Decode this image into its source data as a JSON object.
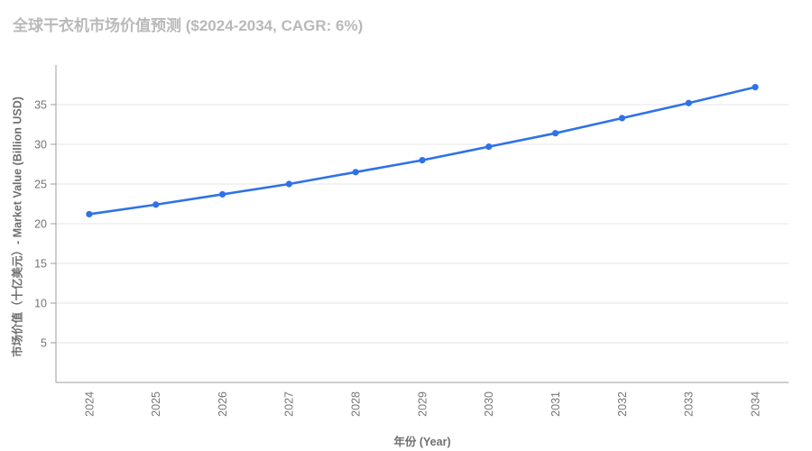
{
  "title": "全球干衣机市场价值预测 ($2024-2034, CAGR: 6%)",
  "chart_data": {
    "type": "line",
    "title": "全球干衣机市场价值预测 ($2024-2034, CAGR: 6%)",
    "categories": [
      "2024",
      "2025",
      "2026",
      "2027",
      "2028",
      "2029",
      "2030",
      "2031",
      "2032",
      "2033",
      "2034"
    ],
    "series": [
      {
        "name": "Market Value (Billion USD)",
        "values": [
          21.2,
          22.4,
          23.7,
          25.0,
          26.5,
          28.0,
          29.7,
          31.4,
          33.3,
          35.2,
          37.2
        ]
      }
    ],
    "xlabel": "年份 (Year)",
    "ylabel": "市场价值（十亿美元）- Market Value (Billion USD)",
    "ylim": [
      0,
      40
    ],
    "yticks": [
      5,
      10,
      15,
      20,
      25,
      30,
      35
    ],
    "grid": true,
    "legend_position": "none"
  },
  "colors": {
    "line": "#2f72e8",
    "point": "#2f72e8",
    "gridline": "#e6e6e6",
    "axis_line": "#9e9e9e",
    "tick_label": "#757575",
    "title": "#b9b9b9",
    "axis_title": "#6f6f6f"
  }
}
